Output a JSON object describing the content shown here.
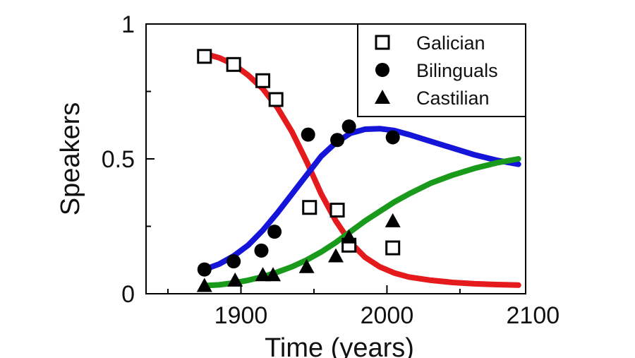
{
  "chart_data": {
    "type": "scatter",
    "xlabel": "Time (years)",
    "ylabel": "Speakers",
    "xlim": [
      1835,
      2095
    ],
    "ylim": [
      0,
      1
    ],
    "xticks": [
      1900,
      2000,
      2100
    ],
    "xtick_labels": [
      "1900",
      "2000",
      "2100"
    ],
    "yticks": [
      0,
      0.5,
      1
    ],
    "ytick_labels": [
      "0",
      "0.5",
      "1"
    ],
    "grid": false,
    "legend_position": "top-right",
    "series": [
      {
        "name": "Galician",
        "marker": "open-square",
        "color": "#000000",
        "points": [
          [
            1875,
            0.88
          ],
          [
            1895,
            0.85
          ],
          [
            1915,
            0.79
          ],
          [
            1924,
            0.72
          ],
          [
            1947,
            0.32
          ],
          [
            1966,
            0.31
          ],
          [
            1974,
            0.18
          ],
          [
            2004,
            0.17
          ]
        ],
        "fit_color": "#e41a1c",
        "fit": [
          [
            1875,
            0.89
          ],
          [
            1885,
            0.875
          ],
          [
            1895,
            0.85
          ],
          [
            1905,
            0.81
          ],
          [
            1915,
            0.76
          ],
          [
            1925,
            0.69
          ],
          [
            1935,
            0.6
          ],
          [
            1945,
            0.49
          ],
          [
            1955,
            0.37
          ],
          [
            1965,
            0.27
          ],
          [
            1975,
            0.19
          ],
          [
            1985,
            0.135
          ],
          [
            1995,
            0.1
          ],
          [
            2005,
            0.077
          ],
          [
            2015,
            0.062
          ],
          [
            2030,
            0.05
          ],
          [
            2045,
            0.042
          ],
          [
            2060,
            0.037
          ],
          [
            2075,
            0.034
          ],
          [
            2090,
            0.032
          ]
        ]
      },
      {
        "name": "Bilinguals",
        "marker": "filled-circle",
        "color": "#000000",
        "points": [
          [
            1875,
            0.09
          ],
          [
            1895,
            0.12
          ],
          [
            1914,
            0.16
          ],
          [
            1923,
            0.23
          ],
          [
            1946,
            0.59
          ],
          [
            1966,
            0.57
          ],
          [
            1974,
            0.62
          ],
          [
            2004,
            0.58
          ]
        ],
        "fit_color": "#1515d9",
        "fit": [
          [
            1875,
            0.09
          ],
          [
            1885,
            0.11
          ],
          [
            1895,
            0.14
          ],
          [
            1905,
            0.18
          ],
          [
            1915,
            0.235
          ],
          [
            1925,
            0.3
          ],
          [
            1935,
            0.37
          ],
          [
            1945,
            0.44
          ],
          [
            1955,
            0.51
          ],
          [
            1965,
            0.56
          ],
          [
            1975,
            0.595
          ],
          [
            1985,
            0.61
          ],
          [
            1995,
            0.612
          ],
          [
            2005,
            0.605
          ],
          [
            2015,
            0.59
          ],
          [
            2030,
            0.565
          ],
          [
            2045,
            0.54
          ],
          [
            2060,
            0.515
          ],
          [
            2075,
            0.495
          ],
          [
            2090,
            0.48
          ]
        ]
      },
      {
        "name": "Castilian",
        "marker": "filled-triangle",
        "color": "#000000",
        "points": [
          [
            1875,
            0.03
          ],
          [
            1896,
            0.05
          ],
          [
            1915,
            0.07
          ],
          [
            1922,
            0.07
          ],
          [
            1945,
            0.1
          ],
          [
            1965,
            0.14
          ],
          [
            1974,
            0.21
          ],
          [
            2004,
            0.27
          ]
        ],
        "fit_color": "#1a9a1a",
        "fit": [
          [
            1875,
            0.03
          ],
          [
            1885,
            0.033
          ],
          [
            1895,
            0.04
          ],
          [
            1905,
            0.05
          ],
          [
            1915,
            0.063
          ],
          [
            1925,
            0.08
          ],
          [
            1935,
            0.1
          ],
          [
            1945,
            0.125
          ],
          [
            1955,
            0.155
          ],
          [
            1965,
            0.19
          ],
          [
            1975,
            0.23
          ],
          [
            1985,
            0.27
          ],
          [
            1995,
            0.305
          ],
          [
            2005,
            0.34
          ],
          [
            2015,
            0.37
          ],
          [
            2030,
            0.41
          ],
          [
            2045,
            0.44
          ],
          [
            2060,
            0.465
          ],
          [
            2075,
            0.485
          ],
          [
            2090,
            0.5
          ]
        ]
      }
    ]
  }
}
